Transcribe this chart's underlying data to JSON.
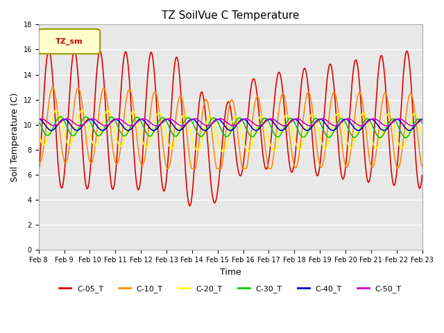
{
  "title": "TZ SoilVue C Temperature",
  "ylabel": "Soil Temperature (C)",
  "xlabel": "Time",
  "ylim": [
    0,
    18
  ],
  "yticks": [
    0,
    2,
    4,
    6,
    8,
    10,
    12,
    14,
    16,
    18
  ],
  "legend_label": "TZ_sm",
  "background_color": "#e8e8e8",
  "series": [
    {
      "name": "C-05_T",
      "color": "#dd0000",
      "lw": 1.2
    },
    {
      "name": "C-10_T",
      "color": "#ff8c00",
      "lw": 1.2
    },
    {
      "name": "C-20_T",
      "color": "#ffff00",
      "lw": 1.2
    },
    {
      "name": "C-30_T",
      "color": "#00cc00",
      "lw": 1.2
    },
    {
      "name": "C-40_T",
      "color": "#0000cc",
      "lw": 1.2
    },
    {
      "name": "C-50_T",
      "color": "#cc00cc",
      "lw": 1.2
    }
  ],
  "xtick_positions": [
    0,
    1,
    2,
    3,
    4,
    5,
    6,
    7,
    8,
    9,
    10,
    11,
    12,
    13,
    14,
    15
  ],
  "xtick_labels": [
    "Feb 8",
    "Feb 9",
    "Feb 10",
    "Feb 11",
    "Feb 12",
    "Feb 13",
    "Feb 14",
    "Feb 15",
    "Feb 16",
    "Feb 17",
    "Feb 18",
    "Feb 19",
    "Feb 20",
    "Feb 21",
    "Feb 22",
    "Feb 23"
  ],
  "n_days": 15
}
